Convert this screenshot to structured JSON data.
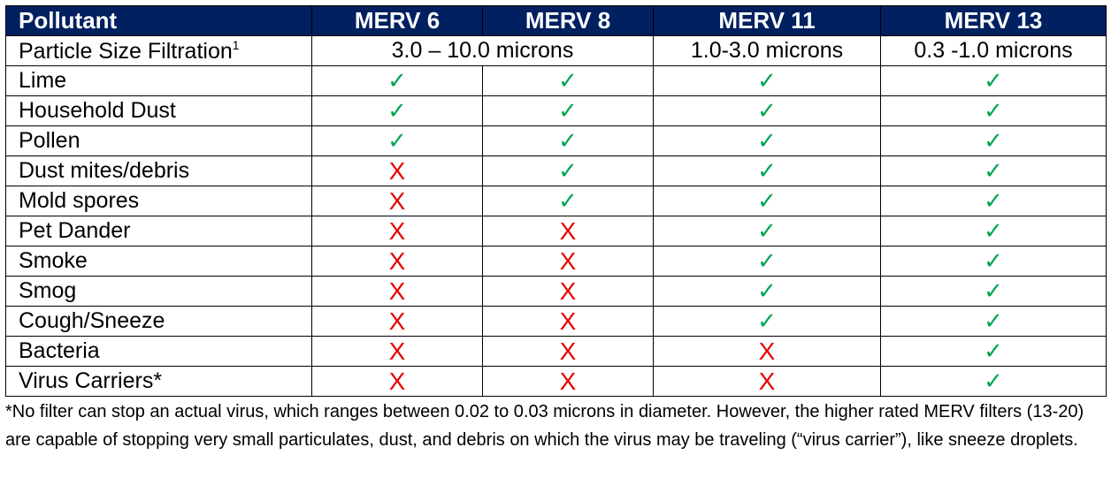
{
  "header": [
    "Pollutant",
    "MERV 6",
    "MERV 8",
    "MERV 11",
    "MERV 13"
  ],
  "size_row": {
    "label": "Particle Size Filtration",
    "sup": "1",
    "merv6_8": "3.0 – 10.0 microns",
    "merv11": "1.0-3.0 microns",
    "merv13": "0.3 -1.0 microns"
  },
  "symbols": {
    "yes": "✓",
    "no": "X"
  },
  "colors": {
    "header_bg": "#002060",
    "yes": "#00a550",
    "no": "#e60000"
  },
  "rows": [
    {
      "label": "Lime",
      "marks": [
        true,
        true,
        true,
        true
      ]
    },
    {
      "label": "Household Dust",
      "marks": [
        true,
        true,
        true,
        true
      ]
    },
    {
      "label": "Pollen",
      "marks": [
        true,
        true,
        true,
        true
      ]
    },
    {
      "label": "Dust mites/debris",
      "marks": [
        false,
        true,
        true,
        true
      ]
    },
    {
      "label": "Mold spores",
      "marks": [
        false,
        true,
        true,
        true
      ]
    },
    {
      "label": "Pet Dander",
      "marks": [
        false,
        false,
        true,
        true
      ]
    },
    {
      "label": "Smoke",
      "marks": [
        false,
        false,
        true,
        true
      ]
    },
    {
      "label": "Smog",
      "marks": [
        false,
        false,
        true,
        true
      ]
    },
    {
      "label": "Cough/Sneeze",
      "marks": [
        false,
        false,
        true,
        true
      ]
    },
    {
      "label": "Bacteria",
      "marks": [
        false,
        false,
        false,
        true
      ]
    },
    {
      "label": "Virus Carriers*",
      "marks": [
        false,
        false,
        false,
        true
      ]
    }
  ],
  "footnote": "*No filter can stop an actual virus, which ranges between 0.02 to 0.03 microns in diameter. However, the higher rated MERV filters (13-20) are capable of stopping very small particulates, dust, and debris on which the virus may be traveling (“virus carrier”), like sneeze droplets."
}
